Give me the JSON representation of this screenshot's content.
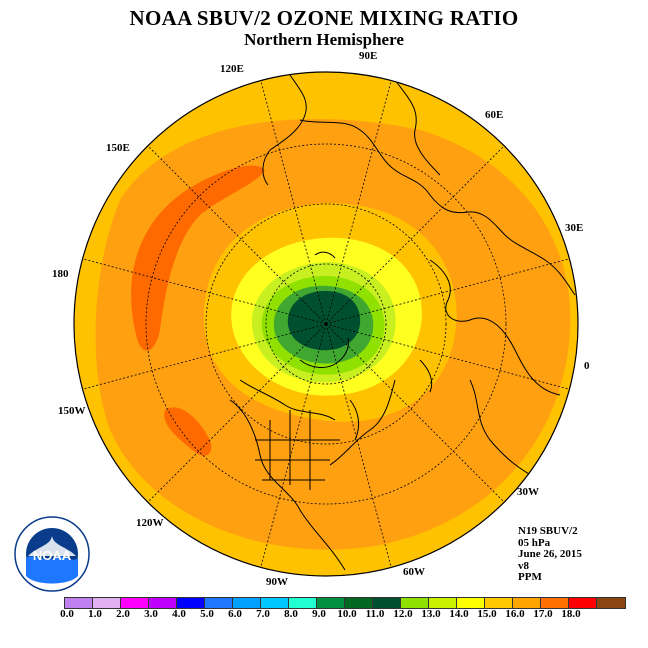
{
  "title": "NOAA SBUV/2 OZONE MIXING RATIO",
  "subtitle": "Northern Hemisphere",
  "longitude_labels": [
    "90E",
    "60E",
    "30E",
    "0",
    "30W",
    "60W",
    "90W",
    "120W",
    "150W",
    "180",
    "150E",
    "120E"
  ],
  "info": {
    "line1": "N19 SBUV/2",
    "line2": "05 hPa",
    "line3": "June 26, 2015",
    "line4": "v8",
    "line5": "PPM"
  },
  "logo_text": "NOAA",
  "colorbar": {
    "ticks": [
      "0.0",
      "1.0",
      "2.0",
      "3.0",
      "4.0",
      "5.0",
      "6.0",
      "7.0",
      "8.0",
      "9.0",
      "10.0",
      "11.0",
      "12.0",
      "13.0",
      "14.0",
      "15.0",
      "16.0",
      "17.0",
      "18.0"
    ],
    "colors": [
      "#c080f0",
      "#e0b0f0",
      "#ff00ff",
      "#c000ff",
      "#0000ff",
      "#1e78ff",
      "#00a0ff",
      "#00c8ff",
      "#20ffd0",
      "#009040",
      "#006820",
      "#005030",
      "#90e000",
      "#c8f000",
      "#ffff00",
      "#ffc800",
      "#ffa500",
      "#ff7000",
      "#ff0000",
      "#8b4513"
    ]
  },
  "map_colors": {
    "ocean_ring": "#ffc200",
    "band_orange": "#ffa010",
    "band_darkorange": "#ff6a00",
    "band_yellow": "#ffff20",
    "band_yellowgreen": "#c8f020",
    "band_lightgreen": "#90e000",
    "band_green": "#40a830",
    "core": "#005030"
  }
}
